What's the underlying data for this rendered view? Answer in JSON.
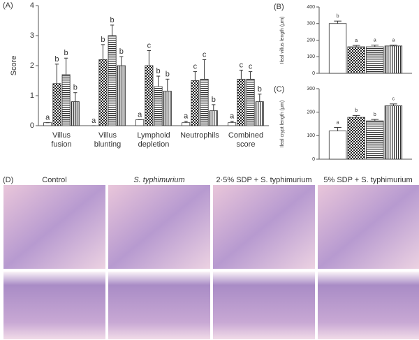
{
  "chart_data": [
    {
      "type": "bar",
      "panel": "(A)",
      "ylabel": "Score",
      "categories": [
        [
          "Villus",
          "fusion"
        ],
        [
          "Villus",
          "blunting"
        ],
        [
          "Lymphoid",
          "depletion"
        ],
        [
          "Neutrophils"
        ],
        [
          "Combined",
          "score"
        ]
      ],
      "ylim": [
        0,
        4
      ],
      "yticks": [
        0,
        1,
        2,
        3,
        4
      ],
      "series": [
        {
          "color": "#ffffff",
          "pattern": "plain",
          "values": [
            0.1,
            0,
            0.2,
            0.1,
            0.1
          ],
          "errors": [
            0,
            0,
            0,
            0.05,
            0.05
          ],
          "letters": [
            "a",
            "a",
            "a",
            "a",
            "a"
          ]
        },
        {
          "color": "#333333",
          "pattern": "dots",
          "values": [
            1.4,
            2.2,
            2.0,
            1.5,
            1.55
          ],
          "errors": [
            0.65,
            0.5,
            0.5,
            0.3,
            0.3
          ],
          "letters": [
            "b",
            "b",
            "c",
            "c",
            "c"
          ]
        },
        {
          "color": "#333333",
          "pattern": "hstripes",
          "values": [
            1.7,
            3.0,
            1.3,
            1.55,
            1.55
          ],
          "errors": [
            0.55,
            0.35,
            0.35,
            0.65,
            0.25
          ],
          "letters": [
            "b",
            "b",
            "b",
            "c",
            "c"
          ]
        },
        {
          "color": "#333333",
          "pattern": "vstripes",
          "values": [
            0.8,
            2.0,
            1.15,
            0.5,
            0.8
          ],
          "errors": [
            0.3,
            0.3,
            0.4,
            0.2,
            0.25
          ],
          "letters": [
            "b",
            "b",
            "b",
            "b",
            "b"
          ]
        }
      ]
    },
    {
      "type": "bar",
      "panel": "(B)",
      "ylabel": "Ileal villus length (μm)",
      "ylim": [
        0,
        400
      ],
      "yticks": [
        0,
        100,
        200,
        300,
        400
      ],
      "series": [
        {
          "color": "#ffffff",
          "pattern": "plain",
          "values": [
            300
          ],
          "errors": [
            15
          ],
          "letters": [
            "b"
          ]
        },
        {
          "color": "#333333",
          "pattern": "dots",
          "values": [
            160
          ],
          "errors": [
            8
          ],
          "letters": [
            "a"
          ]
        },
        {
          "color": "#333333",
          "pattern": "hstripes",
          "values": [
            160
          ],
          "errors": [
            10
          ],
          "letters": [
            "a"
          ]
        },
        {
          "color": "#333333",
          "pattern": "vstripes",
          "values": [
            165
          ],
          "errors": [
            5
          ],
          "letters": [
            "a"
          ]
        }
      ]
    },
    {
      "type": "bar",
      "panel": "(C)",
      "ylabel": "Ileal crypt length (μm)",
      "ylim": [
        0,
        300
      ],
      "yticks": [
        0,
        100,
        200,
        300
      ],
      "series": [
        {
          "color": "#ffffff",
          "pattern": "plain",
          "values": [
            120
          ],
          "errors": [
            15
          ],
          "letters": [
            "a"
          ]
        },
        {
          "color": "#333333",
          "pattern": "dots",
          "values": [
            178
          ],
          "errors": [
            8
          ],
          "letters": [
            "b"
          ]
        },
        {
          "color": "#333333",
          "pattern": "hstripes",
          "values": [
            163
          ],
          "errors": [
            6
          ],
          "letters": [
            "b"
          ]
        },
        {
          "color": "#333333",
          "pattern": "vstripes",
          "values": [
            227
          ],
          "errors": [
            8
          ],
          "letters": [
            "c"
          ]
        }
      ]
    }
  ],
  "panel_d": {
    "label": "(D)",
    "columns": [
      "Control",
      "S. typhimurium",
      "2·5% SDP + S. typhimurium",
      "5% SDP + S. typhimurium"
    ]
  }
}
